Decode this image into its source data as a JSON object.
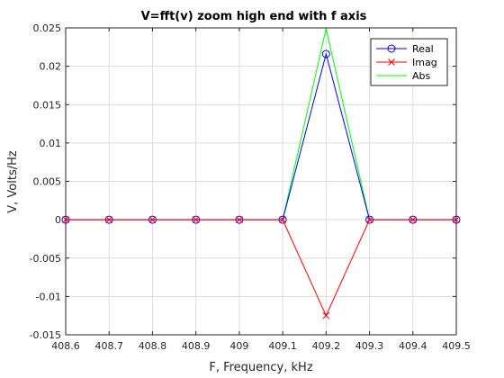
{
  "chart_data": {
    "type": "line",
    "title": "V=fft(v) zoom high end with f axis",
    "xlabel": "F, Frequency, kHz",
    "ylabel": "V, Volts/Hz",
    "xlim": [
      408.6,
      409.5
    ],
    "ylim": [
      -0.015,
      0.025
    ],
    "xticks": [
      "408.6",
      "408.7",
      "408.8",
      "408.9",
      "409",
      "409.1",
      "409.2",
      "409.3",
      "409.4",
      "409.5"
    ],
    "yticks": [
      "0.025",
      "0.02",
      "0.015",
      "0.01",
      "0.005",
      "0",
      "-0.005",
      "-0.01",
      "-0.015"
    ],
    "grid": true,
    "legend_position": "top-right",
    "x": [
      408.6,
      408.7,
      408.8,
      408.9,
      409.0,
      409.1,
      409.2,
      409.3,
      409.4,
      409.5
    ],
    "series": [
      {
        "name": "Real",
        "color": "#0000ff",
        "marker": "circle",
        "values": [
          0,
          0,
          0,
          0,
          0,
          0,
          0.0216,
          0,
          0,
          0
        ]
      },
      {
        "name": "Imag",
        "color": "#ff0000",
        "marker": "x",
        "values": [
          0,
          0,
          0,
          0,
          0,
          0,
          -0.0125,
          0,
          0,
          0
        ]
      },
      {
        "name": "Abs",
        "color": "#00ff00",
        "marker": "none",
        "values": [
          0,
          0,
          0,
          0,
          0,
          0,
          0.0249,
          0,
          0,
          0
        ]
      }
    ]
  }
}
